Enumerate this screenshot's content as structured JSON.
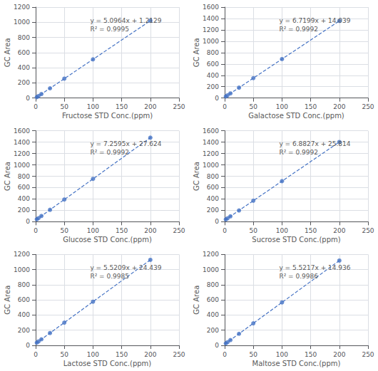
{
  "chart_data": [
    {
      "type": "scatter",
      "xlabel": "Fructose STD Conc.(ppm)",
      "ylabel": "GC Area",
      "annotations": [
        "y = 5.0964x + 1.2129",
        "R² = 0.9995"
      ],
      "xlim": [
        0,
        250
      ],
      "xticks": [
        0,
        50,
        100,
        150,
        200,
        250
      ],
      "ylim": [
        0,
        1200
      ],
      "yticks": [
        0,
        200,
        400,
        600,
        800,
        1000,
        1200
      ],
      "grid": true,
      "series": [
        {
          "type": "scatter",
          "color": "#4472C4",
          "marker": "circle",
          "x": [
            2,
            5,
            10,
            25,
            50,
            100,
            200
          ],
          "values": [
            11.4057,
            26.6949,
            52.1769,
            128.6229,
            256.0329,
            510.8529,
            1020.4929
          ]
        },
        {
          "type": "line",
          "color": "#4472C4",
          "line_style": "dashed",
          "x": [
            0,
            202
          ],
          "values": [
            1.2129,
            1030.6857
          ]
        }
      ]
    },
    {
      "type": "scatter",
      "xlabel": "Galactose STD Conc.(ppm)",
      "ylabel": "GC Area",
      "annotations": [
        "y = 6.7199x + 14.039",
        "R² = 0.9992"
      ],
      "xlim": [
        0,
        250
      ],
      "xticks": [
        0,
        50,
        100,
        150,
        200,
        250
      ],
      "ylim": [
        0,
        1600
      ],
      "yticks": [
        0,
        200,
        400,
        600,
        800,
        1000,
        1200,
        1400,
        1600
      ],
      "grid": true,
      "series": [
        {
          "type": "scatter",
          "color": "#4472C4",
          "marker": "circle",
          "x": [
            2,
            5,
            10,
            25,
            50,
            100,
            200
          ],
          "values": [
            27.4788,
            47.6385,
            81.238,
            182.0365,
            350.034,
            686.029,
            1358.019
          ]
        },
        {
          "type": "line",
          "color": "#4472C4",
          "line_style": "dashed",
          "x": [
            0,
            202
          ],
          "values": [
            14.039,
            1371.4588
          ]
        }
      ]
    },
    {
      "type": "scatter",
      "xlabel": "Glucose STD Conc.(ppm)",
      "ylabel": "GC Area",
      "annotations": [
        "y = 7.2595x + 27.624",
        "R² = 0.9992"
      ],
      "xlim": [
        0,
        250
      ],
      "xticks": [
        0,
        50,
        100,
        150,
        200,
        250
      ],
      "ylim": [
        0,
        1600
      ],
      "yticks": [
        0,
        200,
        400,
        600,
        800,
        1000,
        1200,
        1400,
        1600
      ],
      "grid": true,
      "series": [
        {
          "type": "scatter",
          "color": "#4472C4",
          "marker": "circle",
          "x": [
            2,
            5,
            10,
            25,
            50,
            100,
            200
          ],
          "values": [
            42.143,
            63.9215,
            100.219,
            209.1115,
            390.599,
            753.574,
            1479.524
          ]
        },
        {
          "type": "line",
          "color": "#4472C4",
          "line_style": "dashed",
          "x": [
            0,
            202
          ],
          "values": [
            27.624,
            1494.043
          ]
        }
      ]
    },
    {
      "type": "scatter",
      "xlabel": "Sucrose STD Conc.(ppm)",
      "ylabel": "GC Area",
      "annotations": [
        "y = 6.8827x + 25.814",
        "R² = 0.9992"
      ],
      "xlim": [
        0,
        250
      ],
      "xticks": [
        0,
        50,
        100,
        150,
        200,
        250
      ],
      "ylim": [
        0,
        1600
      ],
      "yticks": [
        0,
        200,
        400,
        600,
        800,
        1000,
        1200,
        1400,
        1600
      ],
      "grid": true,
      "series": [
        {
          "type": "scatter",
          "color": "#4472C4",
          "marker": "circle",
          "x": [
            2,
            5,
            10,
            25,
            50,
            100,
            200
          ],
          "values": [
            39.5794,
            60.2275,
            94.641,
            197.8815,
            369.949,
            714.084,
            1402.354
          ]
        },
        {
          "type": "line",
          "color": "#4472C4",
          "line_style": "dashed",
          "x": [
            0,
            202
          ],
          "values": [
            25.814,
            1416.1194
          ]
        }
      ]
    },
    {
      "type": "scatter",
      "xlabel": "Lactose STD Conc.(ppm)",
      "ylabel": "GC Area",
      "annotations": [
        "y = 5.5209x + 24.439",
        "R² = 0.9985"
      ],
      "xlim": [
        0,
        250
      ],
      "xticks": [
        0,
        50,
        100,
        150,
        200,
        250
      ],
      "ylim": [
        0,
        1200
      ],
      "yticks": [
        0,
        200,
        400,
        600,
        800,
        1000,
        1200
      ],
      "grid": true,
      "series": [
        {
          "type": "scatter",
          "color": "#4472C4",
          "marker": "circle",
          "x": [
            2,
            5,
            10,
            25,
            50,
            100,
            200
          ],
          "values": [
            35.4808,
            52.0435,
            79.648,
            162.4615,
            300.484,
            576.529,
            1128.619
          ]
        },
        {
          "type": "line",
          "color": "#4472C4",
          "line_style": "dashed",
          "x": [
            0,
            202
          ],
          "values": [
            24.439,
            1139.6608
          ]
        }
      ]
    },
    {
      "type": "scatter",
      "xlabel": "Maltose STD Conc.(ppm)",
      "ylabel": "GC Area",
      "annotations": [
        "y = 5.5217x + 14.936",
        "R² = 0.9986"
      ],
      "xlim": [
        0,
        250
      ],
      "xticks": [
        0,
        50,
        100,
        150,
        200,
        250
      ],
      "ylim": [
        0,
        1200
      ],
      "yticks": [
        0,
        200,
        400,
        600,
        800,
        1000,
        1200
      ],
      "grid": true,
      "series": [
        {
          "type": "scatter",
          "color": "#4472C4",
          "marker": "circle",
          "x": [
            2,
            5,
            10,
            25,
            50,
            100,
            200
          ],
          "values": [
            25.9794,
            42.5445,
            70.153,
            152.9785,
            291.021,
            567.106,
            1119.276
          ]
        },
        {
          "type": "line",
          "color": "#4472C4",
          "line_style": "dashed",
          "x": [
            0,
            202
          ],
          "values": [
            14.936,
            1130.3194
          ]
        }
      ]
    }
  ]
}
